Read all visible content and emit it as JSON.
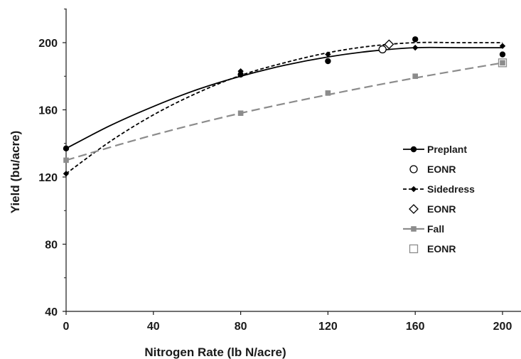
{
  "chart_data": {
    "type": "scatter",
    "title": "",
    "xlabel": "Nitrogen Rate (lb N/acre)",
    "ylabel": "Yield (bu/acre)",
    "xlim": [
      0,
      210
    ],
    "ylim": [
      40,
      220
    ],
    "xticks": [
      0,
      40,
      80,
      120,
      160,
      200
    ],
    "yticks": [
      40,
      80,
      120,
      160,
      200
    ],
    "grid": false,
    "legend_position": "right",
    "series": [
      {
        "name": "Preplant",
        "kind": "observed",
        "marker": "circle-filled",
        "line": "solid",
        "color": "#000000",
        "points": [
          [
            0,
            137
          ],
          [
            80,
            181
          ],
          [
            120,
            189
          ],
          [
            160,
            202
          ],
          [
            200,
            193
          ]
        ],
        "fit": [
          [
            0,
            137
          ],
          [
            20,
            150.5
          ],
          [
            40,
            162
          ],
          [
            60,
            172
          ],
          [
            80,
            180
          ],
          [
            100,
            186.5
          ],
          [
            120,
            191.5
          ],
          [
            140,
            195
          ],
          [
            160,
            197
          ],
          [
            180,
            197
          ],
          [
            200,
            197
          ]
        ]
      },
      {
        "name": "EONR",
        "kind": "optimum",
        "marker": "circle-open",
        "color": "#000000",
        "points": [
          [
            145,
            196
          ]
        ]
      },
      {
        "name": "Sidedress",
        "kind": "observed",
        "marker": "diamond-filled",
        "line": "dashed",
        "color": "#000000",
        "points": [
          [
            0,
            122
          ],
          [
            80,
            183
          ],
          [
            120,
            193
          ],
          [
            160,
            197
          ],
          [
            200,
            198
          ]
        ],
        "fit": [
          [
            0,
            122
          ],
          [
            20,
            141
          ],
          [
            40,
            157
          ],
          [
            60,
            170
          ],
          [
            80,
            180.5
          ],
          [
            100,
            188
          ],
          [
            120,
            194
          ],
          [
            140,
            198
          ],
          [
            160,
            200
          ],
          [
            180,
            200
          ],
          [
            200,
            200
          ]
        ]
      },
      {
        "name": "EONR",
        "kind": "optimum",
        "marker": "diamond-open",
        "color": "#000000",
        "points": [
          [
            148,
            199
          ]
        ]
      },
      {
        "name": "Fall",
        "kind": "observed",
        "marker": "square-filled",
        "line": "long-dashed",
        "color": "#8c8c8c",
        "points": [
          [
            0,
            130
          ],
          [
            80,
            158
          ],
          [
            120,
            170
          ],
          [
            160,
            180
          ],
          [
            200,
            188
          ]
        ],
        "fit": [
          [
            0,
            130
          ],
          [
            40,
            145
          ],
          [
            80,
            158
          ],
          [
            120,
            169
          ],
          [
            160,
            179
          ],
          [
            200,
            188
          ]
        ]
      },
      {
        "name": "EONR",
        "kind": "optimum",
        "marker": "square-open",
        "color": "#8c8c8c",
        "points": [
          [
            200,
            188
          ]
        ]
      }
    ]
  }
}
